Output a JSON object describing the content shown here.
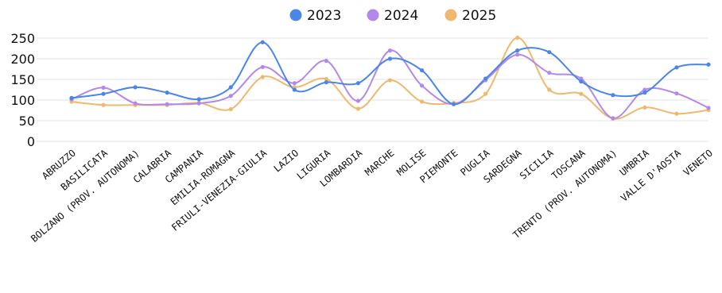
{
  "chart_data": {
    "type": "line",
    "title": "",
    "xlabel": "",
    "ylabel": "",
    "ylim": [
      0,
      250
    ],
    "yticks": [
      0,
      50,
      100,
      150,
      200,
      250
    ],
    "grid": true,
    "legend_position": "top-center",
    "categories": [
      "ABRUZZO",
      "BASILICATA",
      "BOLZANO (PROV. AUTONOMA)",
      "CALABRIA",
      "CAMPANIA",
      "EMILIA-ROMAGNA",
      "FRIULI-VENEZIA-GIULIA",
      "LAZIO",
      "LIGURIA",
      "LOMBARDIA",
      "MARCHE",
      "MOLISE",
      "PIEMONTE",
      "PUGLIA",
      "SARDEGNA",
      "SICILIA",
      "TOSCANA",
      "TRENTO (PROV. AUTONOMA)",
      "UMBRIA",
      "VALLE D'AOSTA",
      "VENETO"
    ],
    "series": [
      {
        "name": "2023",
        "color": "#4a86e8",
        "values": [
          105,
          115,
          131,
          118,
          102,
          131,
          240,
          125,
          143,
          141,
          200,
          172,
          90,
          152,
          220,
          216,
          145,
          112,
          118,
          179,
          186
        ]
      },
      {
        "name": "2024",
        "color": "#b388eb",
        "values": [
          102,
          130,
          92,
          90,
          92,
          110,
          180,
          141,
          195,
          98,
          220,
          135,
          90,
          148,
          210,
          166,
          152,
          56,
          125,
          116,
          81
        ]
      },
      {
        "name": "2025",
        "color": "#f0b86e",
        "values": [
          96,
          88,
          88,
          88,
          93,
          78,
          156,
          131,
          151,
          79,
          148,
          96,
          93,
          115,
          251,
          125,
          115,
          55,
          82,
          67,
          76
        ]
      }
    ]
  }
}
